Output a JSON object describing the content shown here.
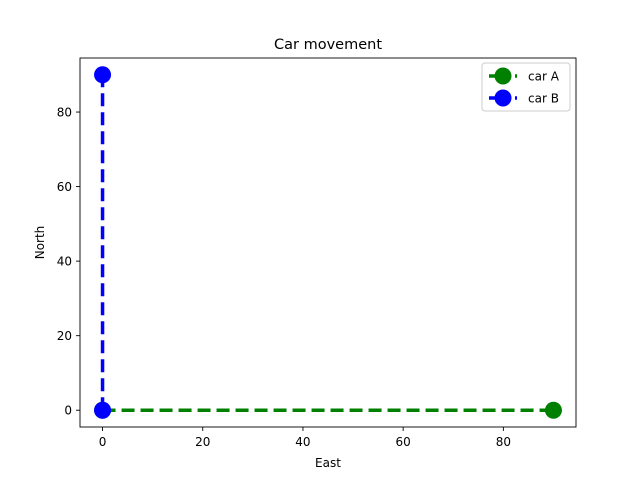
{
  "chart_data": {
    "type": "line",
    "title": "Car movement",
    "xlabel": "East",
    "ylabel": "North",
    "xlim": [
      -4.5,
      94.5
    ],
    "ylim": [
      -4.5,
      94.5
    ],
    "xticks": [
      0,
      20,
      40,
      60,
      80
    ],
    "yticks": [
      0,
      20,
      40,
      60,
      80
    ],
    "grid": false,
    "legend_position": "top-right",
    "series": [
      {
        "name": "car A",
        "color": "#008000",
        "linestyle": "dashed",
        "marker": "circle",
        "x": [
          0,
          90
        ],
        "y": [
          0,
          0
        ]
      },
      {
        "name": "car B",
        "color": "#0000ff",
        "linestyle": "dashed",
        "marker": "circle",
        "x": [
          0,
          0
        ],
        "y": [
          0,
          90
        ]
      }
    ]
  }
}
